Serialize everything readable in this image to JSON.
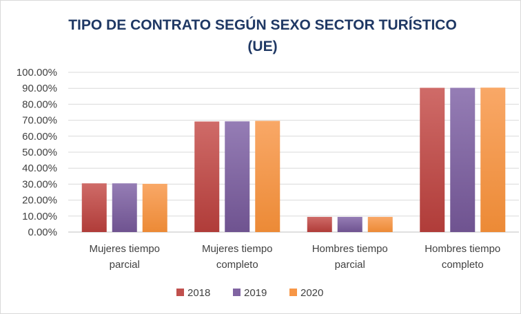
{
  "chart_data": {
    "type": "bar",
    "title_lines": [
      "TIPO DE CONTRATO SEGÚN SEXO SECTOR TURÍSTICO",
      "(UE)"
    ],
    "categories": [
      [
        "Mujeres tiempo",
        "parcial"
      ],
      [
        "Mujeres tiempo",
        "completo"
      ],
      [
        "Hombres tiempo",
        "parcial"
      ],
      [
        "Hombres tiempo",
        "completo"
      ]
    ],
    "series": [
      {
        "name": "2018",
        "color": "#c0504d",
        "color_light": "#cf6b68",
        "color_dark": "#b03c39",
        "values": [
          30.5,
          69.2,
          9.5,
          90.3
        ]
      },
      {
        "name": "2019",
        "color": "#8064a2",
        "color_light": "#957db5",
        "color_dark": "#6f5390",
        "values": [
          30.5,
          69.3,
          9.5,
          90.3
        ]
      },
      {
        "name": "2020",
        "color": "#f79646",
        "color_light": "#f9a867",
        "color_dark": "#ec8a36",
        "values": [
          30.2,
          69.6,
          9.5,
          90.4
        ]
      }
    ],
    "y_ticks": [
      "0.00%",
      "10.00%",
      "20.00%",
      "30.00%",
      "40.00%",
      "50.00%",
      "60.00%",
      "70.00%",
      "80.00%",
      "90.00%",
      "100.00%"
    ],
    "ylim": [
      0,
      100
    ],
    "grid": true,
    "legend_position": "bottom"
  }
}
